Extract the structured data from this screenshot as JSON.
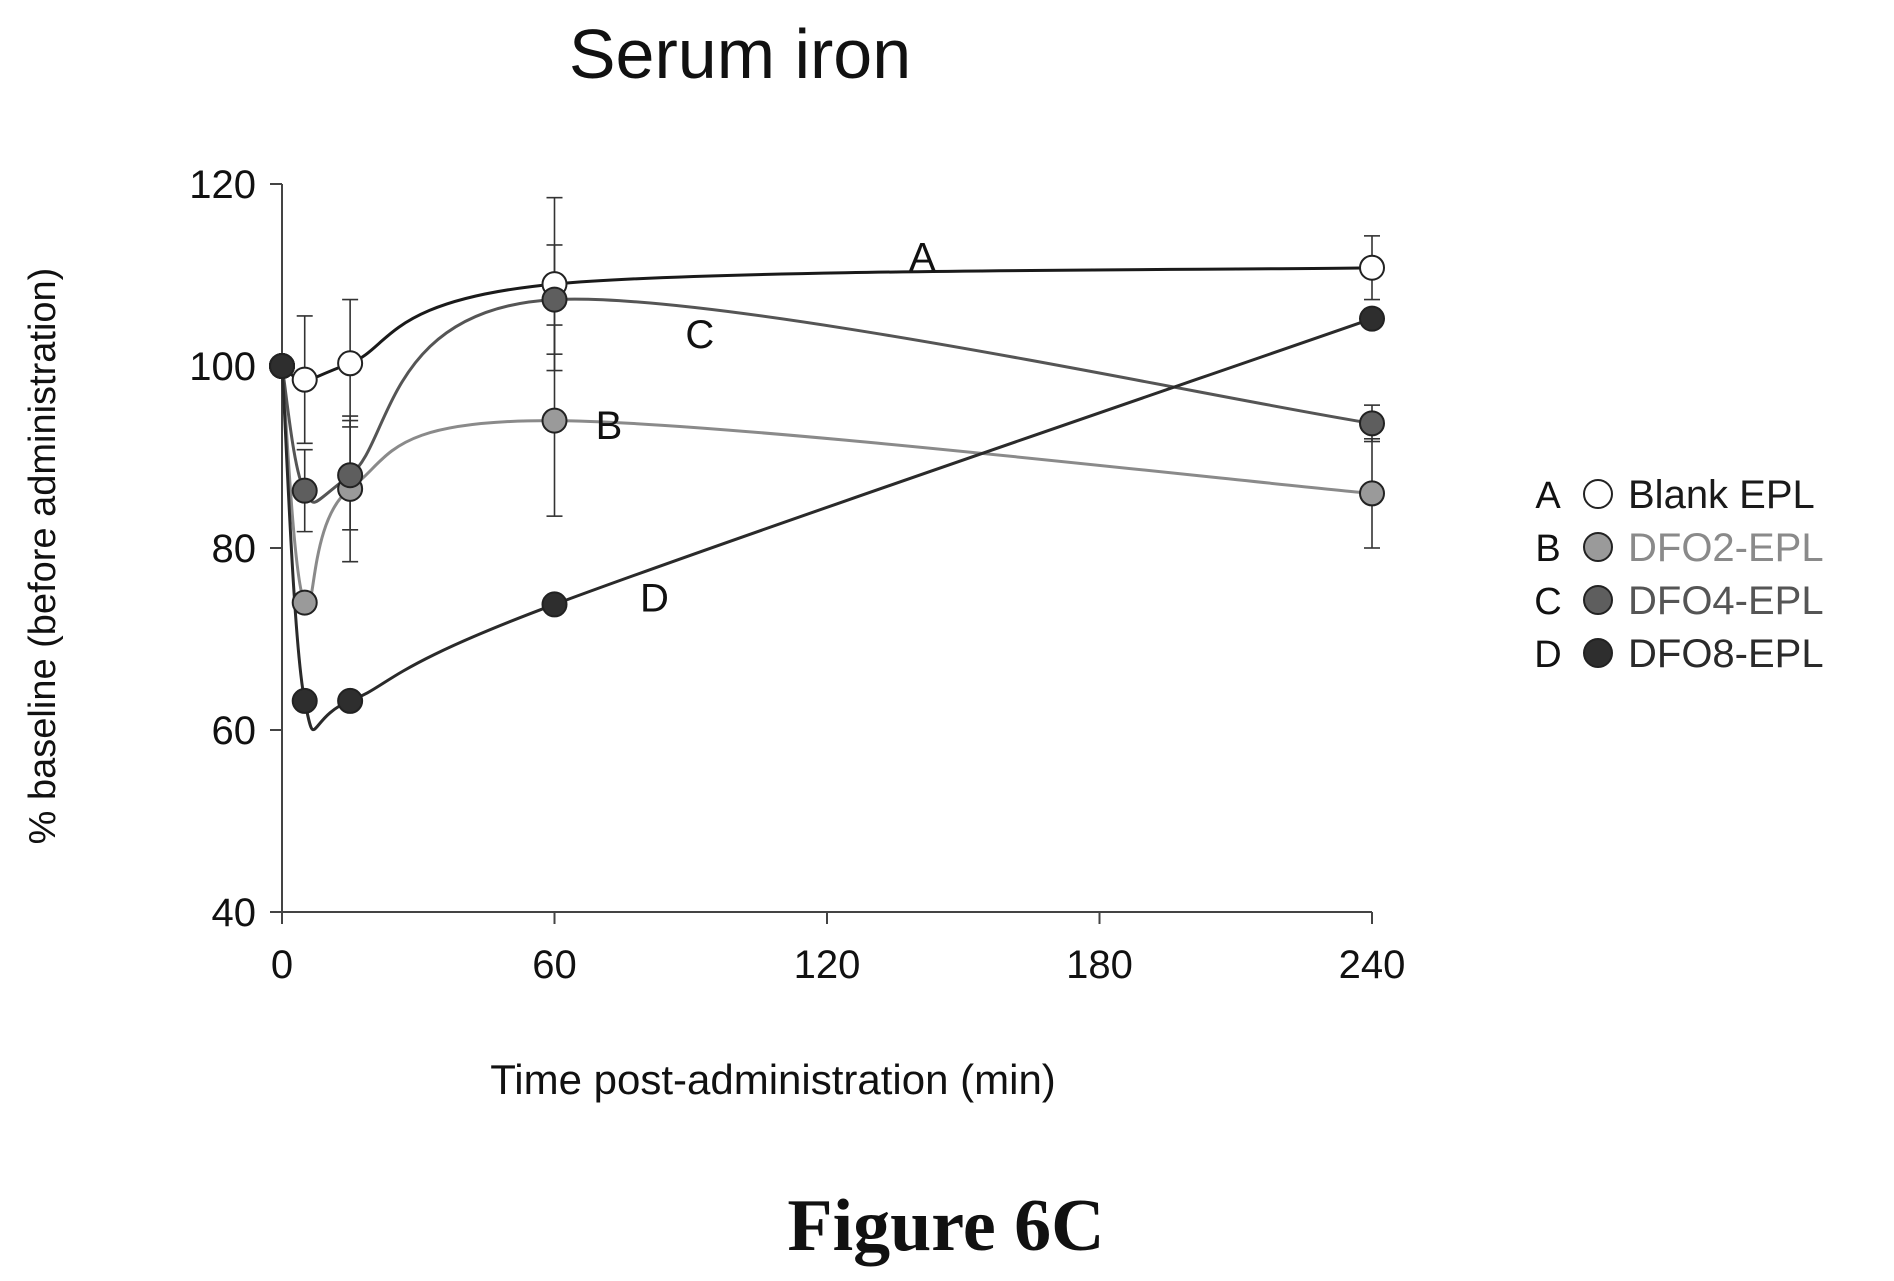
{
  "figure_label": "Figure 6C",
  "chart_data": {
    "type": "line",
    "title": "Serum iron",
    "xlabel": "Time post-administration (min)",
    "ylabel": "% baseline (before administration)",
    "xlim": [
      0,
      240
    ],
    "ylim": [
      40,
      120
    ],
    "xticks": [
      0,
      60,
      120,
      180,
      240
    ],
    "yticks": [
      40,
      60,
      80,
      100,
      120
    ],
    "grid": false,
    "legend_position": "right",
    "series": [
      {
        "name": "Blank EPL",
        "letter": "A",
        "marker": "open-circle",
        "color": "#1a1a1a",
        "fill": "#ffffff",
        "label_color": "#1a1a1a",
        "x": [
          0,
          5,
          15,
          60,
          240
        ],
        "y": [
          100,
          98.5,
          100.3,
          109,
          110.8
        ],
        "err": [
          0,
          7,
          7,
          9.5,
          3.5
        ],
        "label_at": {
          "x": 141,
          "y": 110.5
        }
      },
      {
        "name": "DFO2-EPL",
        "letter": "B",
        "marker": "filled-circle",
        "color": "#8a8a8a",
        "fill": "#9a9a9a",
        "label_color": "#8a8a8a",
        "x": [
          0,
          5,
          15,
          60,
          240
        ],
        "y": [
          100,
          74,
          86.5,
          94,
          86
        ],
        "err": [
          0,
          0,
          8,
          10.5,
          6
        ],
        "label_at": {
          "x": 72,
          "y": 92
        }
      },
      {
        "name": "DFO4-EPL",
        "letter": "C",
        "marker": "filled-circle",
        "color": "#555555",
        "fill": "#5e5e5e",
        "label_color": "#555555",
        "x": [
          0,
          5,
          15,
          60,
          240
        ],
        "y": [
          100,
          86.3,
          88,
          107.3,
          93.7
        ],
        "err": [
          0,
          4.5,
          6,
          6,
          2
        ],
        "label_at": {
          "x": 92,
          "y": 102
        }
      },
      {
        "name": "DFO8-EPL",
        "letter": "D",
        "marker": "filled-circle",
        "color": "#2a2a2a",
        "fill": "#2e2e2e",
        "label_color": "#2a2a2a",
        "x": [
          0,
          5,
          15,
          60,
          240
        ],
        "y": [
          100,
          63.2,
          63.2,
          73.8,
          105.2
        ],
        "err": [
          0,
          0,
          0,
          0,
          0
        ],
        "label_at": {
          "x": 82,
          "y": 73
        }
      }
    ]
  }
}
